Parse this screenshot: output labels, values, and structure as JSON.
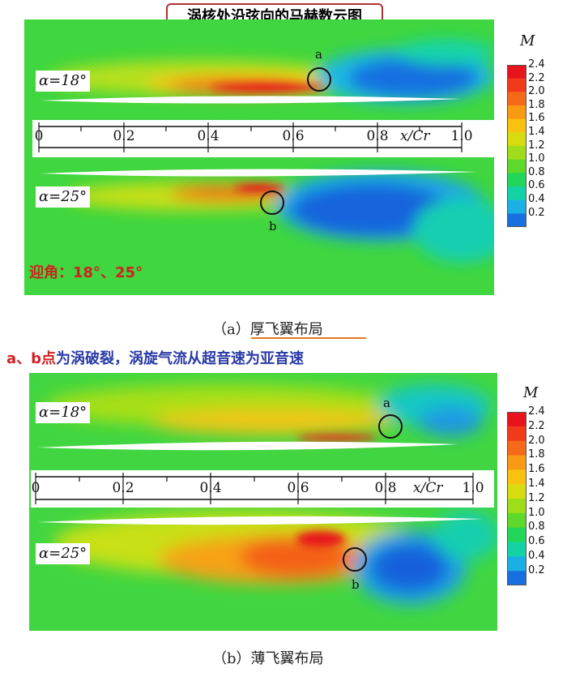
{
  "title": "涡核处沿弦向的马赫数云图",
  "colorbar": {
    "title": "M",
    "labels": [
      "2.4",
      "2.2",
      "2.0",
      "1.8",
      "1.6",
      "1.4",
      "1.2",
      "1.0",
      "0.8",
      "0.6",
      "0.4",
      "0.2"
    ],
    "colors": [
      "#e8141c",
      "#f03a1a",
      "#f56a18",
      "#f99a14",
      "#f9c20e",
      "#d6dc10",
      "#9fdc1a",
      "#5ed82a",
      "#22d65a",
      "#13d3a6",
      "#1ab0e4",
      "#1870e0"
    ]
  },
  "panel_a": {
    "alpha_top": "α=18°",
    "alpha_bottom": "α=25°",
    "mark_top": "a",
    "mark_bottom": "b",
    "axis_ticks": [
      "0",
      "0.2",
      "0.4",
      "0.6",
      "0.8",
      "1.0"
    ],
    "axis_label": "x/Cr",
    "note": "迎角：18°、25°",
    "caption": "（a）厚飞翼布局"
  },
  "panel_b": {
    "alpha_top": "α=18°",
    "alpha_bottom": "α=25°",
    "mark_top": "a",
    "mark_bottom": "b",
    "axis_ticks": [
      "0",
      "0.2",
      "0.4",
      "0.6",
      "0.8",
      "1.0"
    ],
    "axis_label": "x/Cr",
    "caption": "（b）薄飞翼布局"
  },
  "annotation": {
    "part_red": "a、b点",
    "part_blue": "为涡破裂，涡旋气流从超音速为亚音速"
  }
}
